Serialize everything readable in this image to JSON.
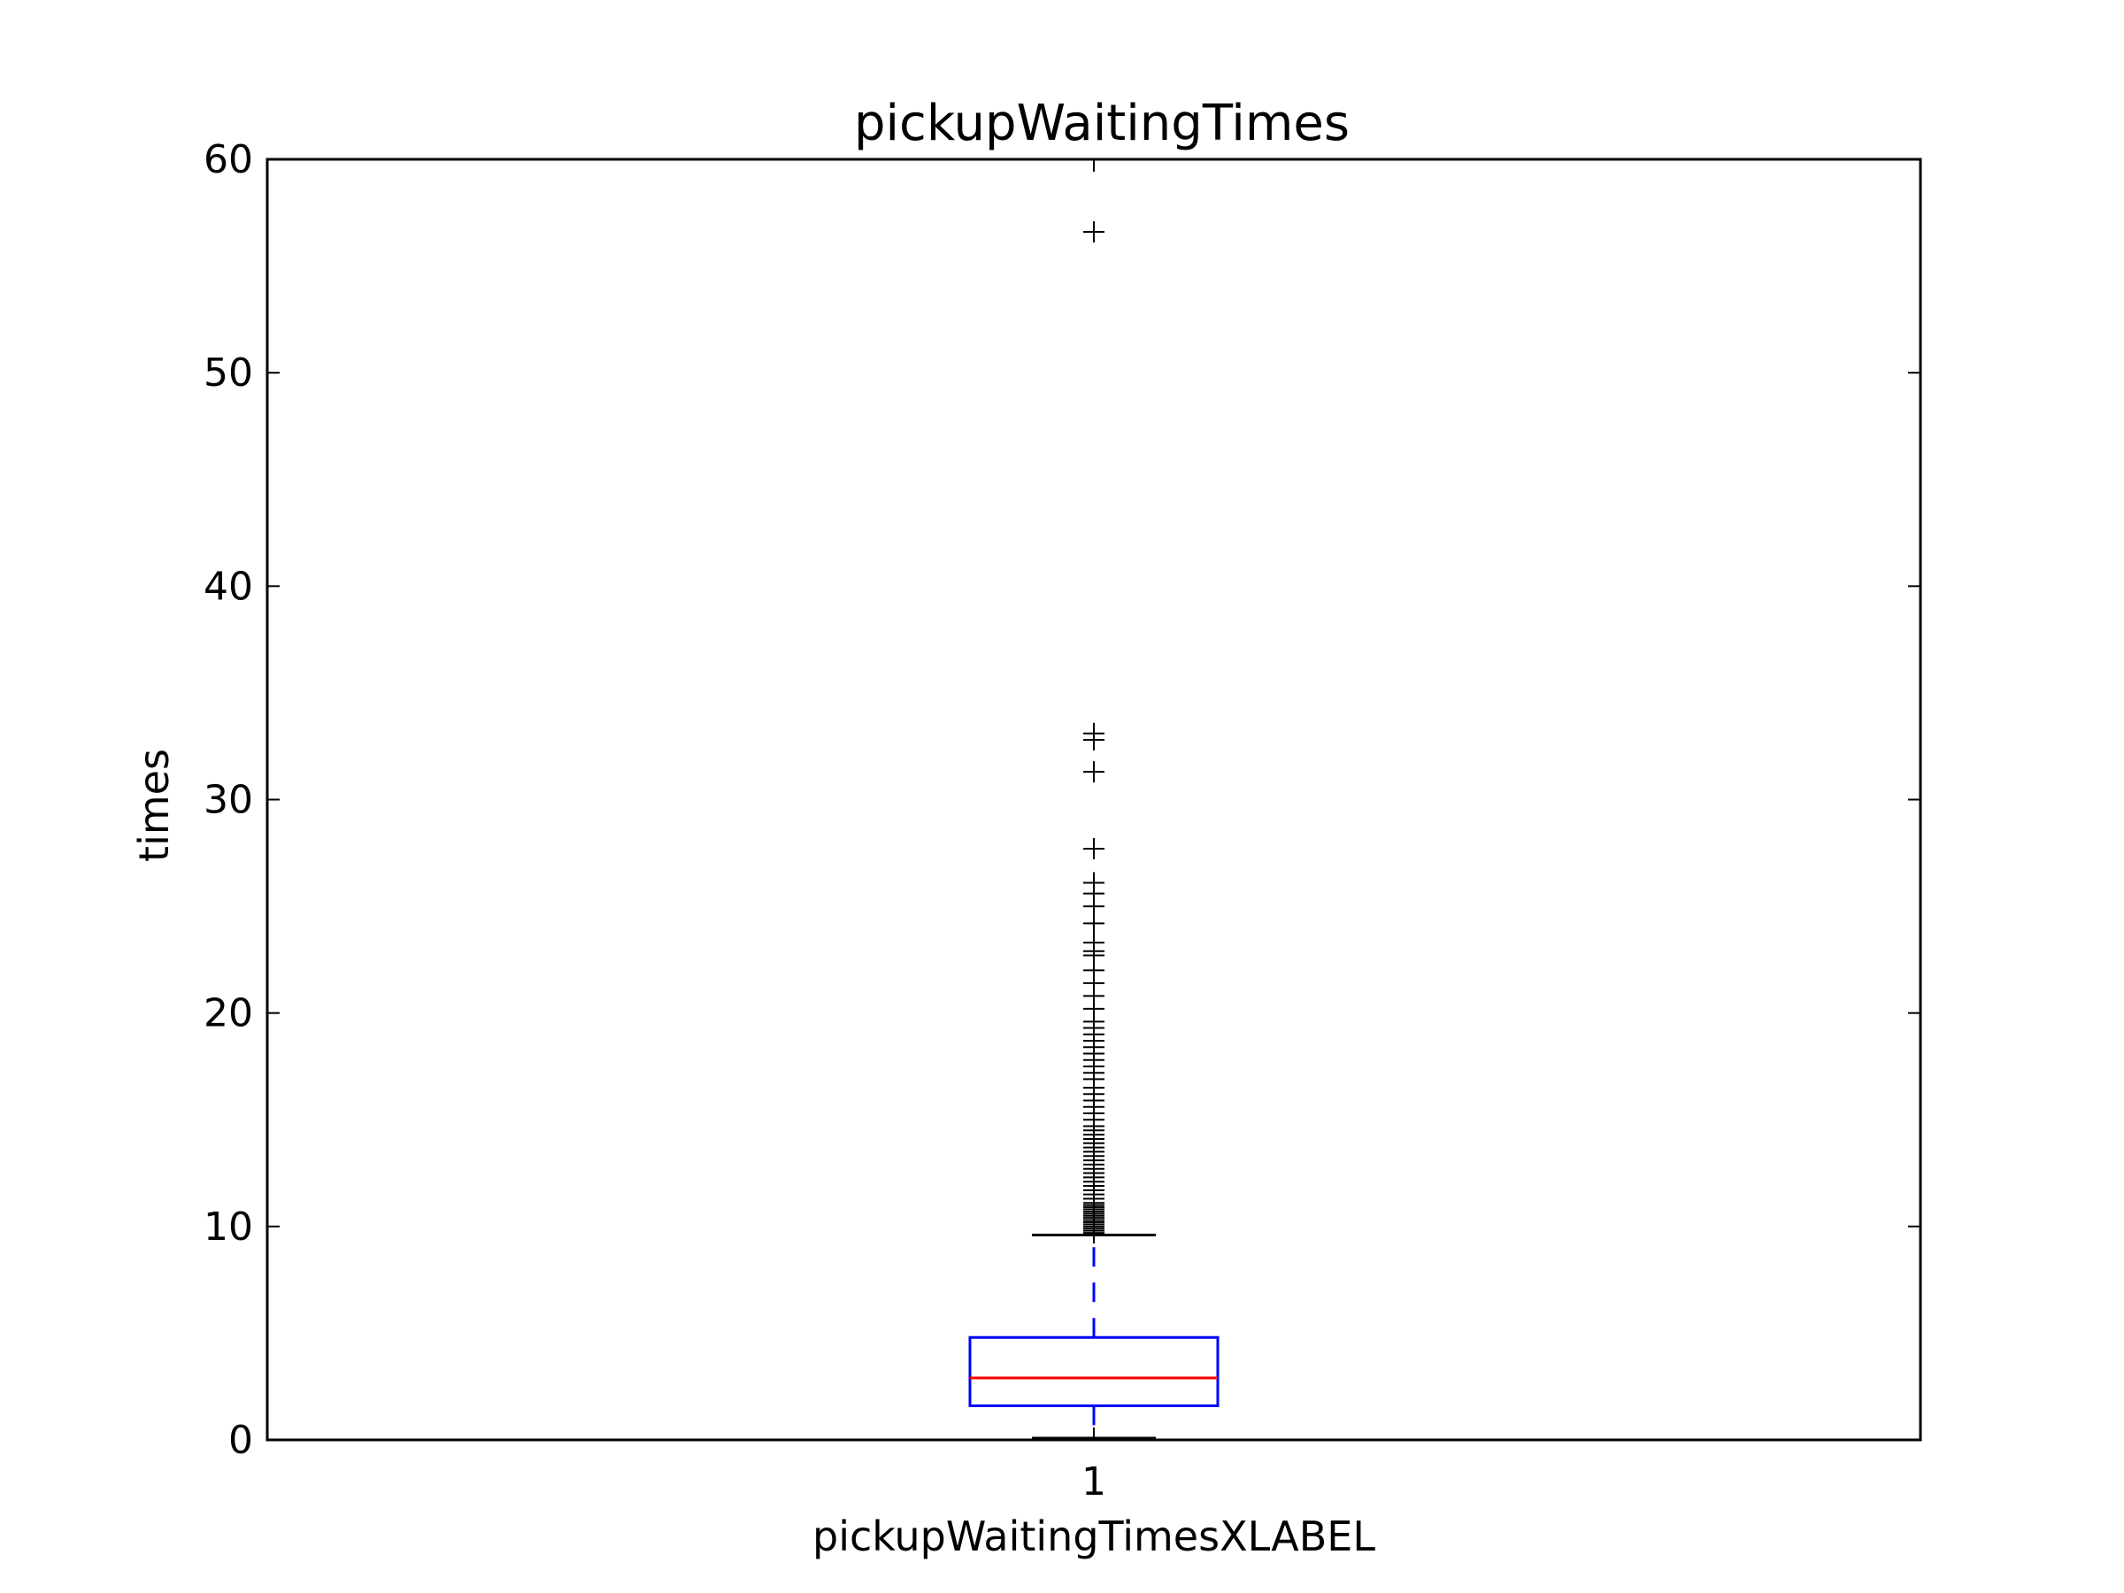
{
  "chart_data": {
    "type": "box",
    "title": "pickupWaitingTimes",
    "xlabel": "pickupWaitingTimesXLABEL",
    "ylabel": "times",
    "ylim": [
      0,
      60
    ],
    "yticks": [
      0,
      10,
      20,
      30,
      40,
      50,
      60
    ],
    "categories": [
      "1"
    ],
    "grid": false,
    "series": [
      {
        "category": "1",
        "whisker_low": 0.0,
        "q1": 1.6,
        "median": 2.9,
        "q3": 4.8,
        "whisker_high": 9.6,
        "outliers": [
          9.7,
          9.8,
          9.9,
          10.0,
          10.1,
          10.2,
          10.3,
          10.4,
          10.5,
          10.6,
          10.7,
          10.8,
          10.9,
          11.0,
          11.1,
          11.3,
          11.5,
          11.7,
          11.9,
          12.1,
          12.3,
          12.5,
          12.7,
          12.9,
          13.1,
          13.3,
          13.5,
          13.7,
          13.9,
          14.1,
          14.3,
          14.5,
          14.7,
          15.0,
          15.3,
          15.6,
          15.9,
          16.2,
          16.5,
          16.9,
          17.2,
          17.5,
          17.8,
          18.1,
          18.4,
          18.7,
          19.0,
          19.3,
          19.6,
          20.2,
          20.8,
          21.4,
          22.0,
          22.7,
          22.9,
          23.3,
          24.2,
          25.0,
          25.6,
          26.1,
          27.7,
          31.3,
          32.8,
          33.1,
          56.6
        ],
        "colors": {
          "box": "#0000ff",
          "median": "#ff0000",
          "whisker": "#0000ff",
          "cap": "#000000",
          "outlier": "#000000"
        }
      }
    ]
  }
}
